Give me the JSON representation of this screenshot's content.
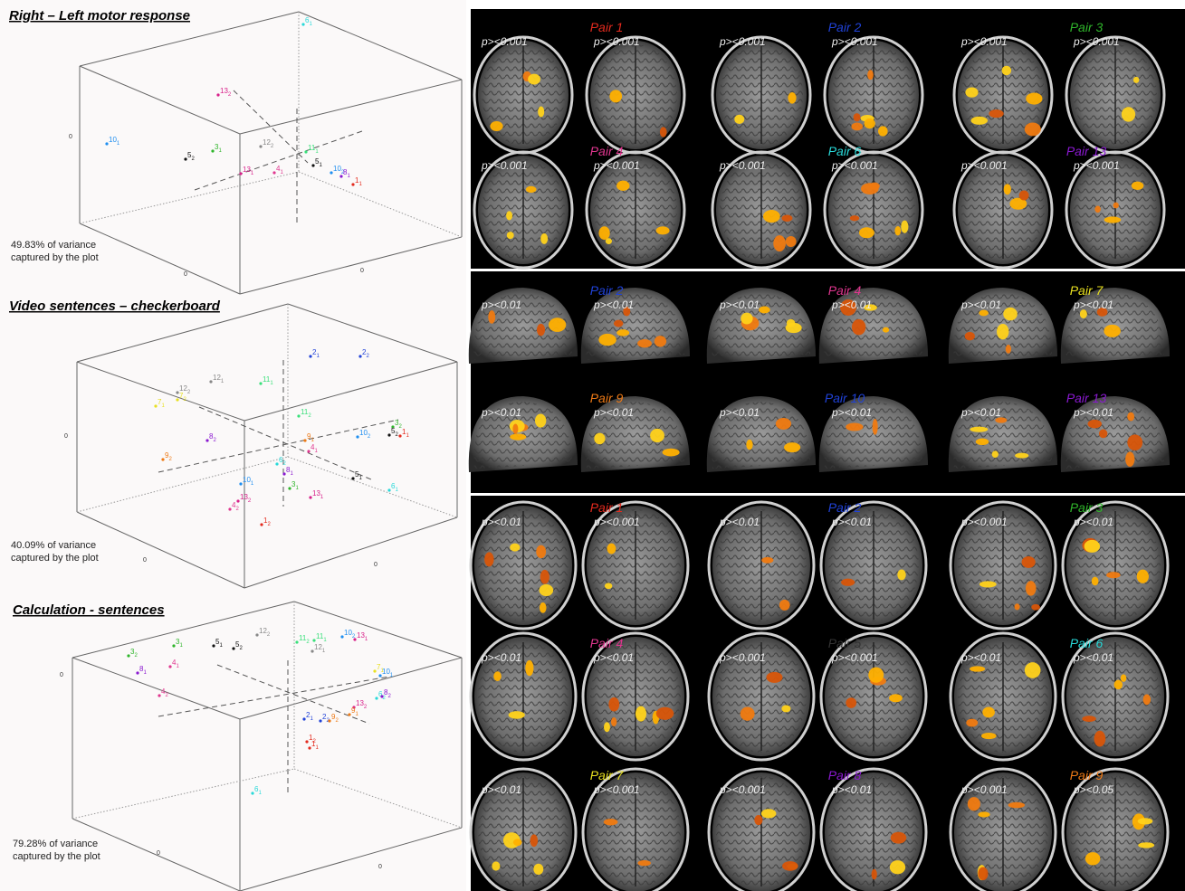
{
  "subject_colors": {
    "1": "#e32a1e",
    "2": "#2042d8",
    "3": "#2fb52b",
    "4": "#e0368f",
    "5": "#111111",
    "6": "#28d9d9",
    "7": "#e8e020",
    "8": "#8a19d0",
    "9": "#ee7a16",
    "10": "#1e8ef0",
    "11": "#39e07a",
    "12": "#888888",
    "13": "#d8208a"
  },
  "plots": [
    {
      "title": "Right – Left motor response",
      "variance": [
        "49.83% of variance",
        "captured by the plot"
      ],
      "axis_zero": [
        "0",
        "0",
        "0"
      ],
      "points": [
        {
          "label": "6",
          "sub": "1"
        },
        {
          "label": "13",
          "sub": "2"
        },
        {
          "label": "10",
          "sub": "1"
        },
        {
          "label": "5",
          "sub": "2"
        },
        {
          "label": "3",
          "sub": "1"
        },
        {
          "label": "13",
          "sub": "1"
        },
        {
          "label": "12",
          "sub": "2"
        },
        {
          "label": "11",
          "sub": "1"
        },
        {
          "label": "4",
          "sub": "1"
        },
        {
          "label": "5",
          "sub": "1"
        },
        {
          "label": "10",
          "sub": "2"
        },
        {
          "label": "8",
          "sub": "1"
        },
        {
          "label": "1",
          "sub": "1"
        }
      ]
    },
    {
      "title": "Video sentences – checkerboard",
      "variance": [
        "40.09% of variance",
        "captured by the plot"
      ],
      "axis_zero": [
        "0",
        "0",
        "0"
      ],
      "points": [
        {
          "label": "2",
          "sub": "1"
        },
        {
          "label": "2",
          "sub": "2"
        },
        {
          "label": "12",
          "sub": "2"
        },
        {
          "label": "12",
          "sub": "1"
        },
        {
          "label": "11",
          "sub": "1"
        },
        {
          "label": "7",
          "sub": "2"
        },
        {
          "label": "7",
          "sub": "1"
        },
        {
          "label": "11",
          "sub": "2"
        },
        {
          "label": "8",
          "sub": "2"
        },
        {
          "label": "9",
          "sub": "2"
        },
        {
          "label": "9",
          "sub": "1"
        },
        {
          "label": "10",
          "sub": "2"
        },
        {
          "label": "3",
          "sub": "2"
        },
        {
          "label": "5",
          "sub": "2"
        },
        {
          "label": "1",
          "sub": "1"
        },
        {
          "label": "4",
          "sub": "1"
        },
        {
          "label": "6",
          "sub": "2"
        },
        {
          "label": "8",
          "sub": "1"
        },
        {
          "label": "5",
          "sub": "1"
        },
        {
          "label": "6",
          "sub": "1"
        },
        {
          "label": "10",
          "sub": "1"
        },
        {
          "label": "3",
          "sub": "1"
        },
        {
          "label": "13",
          "sub": "1"
        },
        {
          "label": "13",
          "sub": "2"
        },
        {
          "label": "4",
          "sub": "2"
        },
        {
          "label": "1",
          "sub": "2"
        }
      ]
    },
    {
      "title": "Calculation - sentences",
      "variance": [
        "79.28% of variance",
        "captured by the plot"
      ],
      "axis_zero": [
        "0",
        "0",
        "0"
      ],
      "points": [
        {
          "label": "3",
          "sub": "2"
        },
        {
          "label": "3",
          "sub": "1"
        },
        {
          "label": "5",
          "sub": "1"
        },
        {
          "label": "5",
          "sub": "2"
        },
        {
          "label": "12",
          "sub": "2"
        },
        {
          "label": "11",
          "sub": "2"
        },
        {
          "label": "11",
          "sub": "1"
        },
        {
          "label": "12",
          "sub": "1"
        },
        {
          "label": "10",
          "sub": "2"
        },
        {
          "label": "13",
          "sub": "1"
        },
        {
          "label": "8",
          "sub": "1"
        },
        {
          "label": "4",
          "sub": "1"
        },
        {
          "label": "7",
          "sub": "1"
        },
        {
          "label": "10",
          "sub": "1"
        },
        {
          "label": "4",
          "sub": "2"
        },
        {
          "label": "6",
          "sub": "2"
        },
        {
          "label": "8",
          "sub": "2"
        },
        {
          "label": "13",
          "sub": "2"
        },
        {
          "label": "9",
          "sub": "1"
        },
        {
          "label": "2",
          "sub": "1"
        },
        {
          "label": "2",
          "sub": "2"
        },
        {
          "label": "9",
          "sub": "2"
        },
        {
          "label": "1",
          "sub": "2"
        },
        {
          "label": "1",
          "sub": "1"
        },
        {
          "label": "6",
          "sub": "1"
        }
      ]
    }
  ],
  "image_groups": [
    {
      "pairs": [
        {
          "label": "Pair 1",
          "color": "#e32a1e",
          "thresholds": [
            "p><0.001",
            "p><0.001"
          ]
        },
        {
          "label": "Pair 2",
          "color": "#2042d8",
          "thresholds": [
            "p><0.001",
            "p><0.001"
          ]
        },
        {
          "label": "Pair 3",
          "color": "#2fb52b",
          "thresholds": [
            "p><0.001",
            "p><0.001"
          ]
        },
        {
          "label": "Pair 4",
          "color": "#e0368f",
          "thresholds": [
            "p><0.001",
            "p><0.001"
          ]
        },
        {
          "label": "Pair 6",
          "color": "#28d9d9",
          "thresholds": [
            "p><0.001",
            "p><0.001"
          ]
        },
        {
          "label": "Pair 13",
          "color": "#8a19d0",
          "thresholds": [
            "p><0.001",
            "p><0.001"
          ]
        }
      ]
    },
    {
      "pairs": [
        {
          "label": "Pair 2",
          "color": "#2042d8",
          "thresholds": [
            "p><0.01",
            "p><0.01"
          ]
        },
        {
          "label": "Pair 4",
          "color": "#e0368f",
          "thresholds": [
            "p><0.01",
            "p><0.01"
          ]
        },
        {
          "label": "Pair 7",
          "color": "#e8e020",
          "thresholds": [
            "p><0.01",
            "p><0.01"
          ]
        },
        {
          "label": "Pair 9",
          "color": "#ee7a16",
          "thresholds": [
            "p><0.01",
            "p><0.01"
          ]
        },
        {
          "label": "Pair 10",
          "color": "#2042d8",
          "thresholds": [
            "p><0.01",
            "p><0.01"
          ]
        },
        {
          "label": "Pair 13",
          "color": "#8a19d0",
          "thresholds": [
            "p><0.01",
            "p><0.01"
          ]
        }
      ]
    },
    {
      "pairs": [
        {
          "label": "Pair 1",
          "color": "#e32a1e",
          "thresholds": [
            "p><0.01",
            "p><0.001"
          ]
        },
        {
          "label": "Pair 2",
          "color": "#2042d8",
          "thresholds": [
            "p><0.01",
            "p><0.01"
          ]
        },
        {
          "label": "Pair 3",
          "color": "#2fb52b",
          "thresholds": [
            "p><0.001",
            "p><0.01"
          ]
        },
        {
          "label": "Pair 4",
          "color": "#e0368f",
          "thresholds": [
            "p><0.01",
            "p><0.01"
          ]
        },
        {
          "label": "Pair 5",
          "color": "#333333",
          "thresholds": [
            "p><0.001",
            "p><0.001"
          ]
        },
        {
          "label": "Pair 6",
          "color": "#28d9d9",
          "thresholds": [
            "p><0.01",
            "p><0.01"
          ]
        },
        {
          "label": "Pair 7",
          "color": "#e8e020",
          "thresholds": [
            "p><0.01",
            "p><0.001"
          ]
        },
        {
          "label": "Pair 8",
          "color": "#8a19d0",
          "thresholds": [
            "p><0.001",
            "p><0.01"
          ]
        },
        {
          "label": "Pair 9",
          "color": "#ee7a16",
          "thresholds": [
            "p><0.001",
            "p><0.05"
          ]
        }
      ]
    }
  ]
}
